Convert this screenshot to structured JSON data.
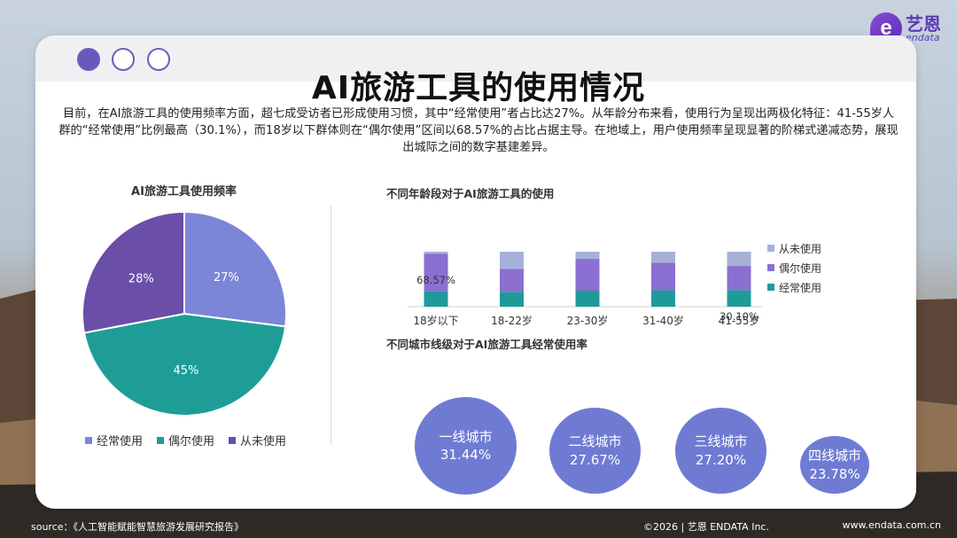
{
  "brand": {
    "cn": "艺恩",
    "en": "endata",
    "mark": "e"
  },
  "title": "AI旅游工具的使用情况",
  "intro": "目前，在AI旅游工具的使用频率方面，超七成受访者已形成使用习惯，其中“经常使用”者占比达27%。从年龄分布来看，使用行为呈现出两极化特征：41-55岁人群的“经常使用”比例最高（30.1%），而18岁以下群体则在“偶尔使用”区间以68.57%的占比占据主导。在地域上，用户使用频率呈现显著的阶梯式递减态势，展现出城际之间的数字基建差异。",
  "colors": {
    "often": "#1f9a9a",
    "sometimes": "#8b6fd1",
    "never": "#a7b1d8",
    "pie_often": "#7b86d8",
    "pie_sometimes": "#1e9d97",
    "pie_never": "#6a4ea8",
    "city": "#6f7bd3"
  },
  "chart_data": [
    {
      "type": "pie",
      "title": "AI旅游工具使用频率",
      "slices": [
        {
          "name": "经常使用",
          "value": 27,
          "label": "27%"
        },
        {
          "name": "偶尔使用",
          "value": 45,
          "label": "45%"
        },
        {
          "name": "从未使用",
          "value": 28,
          "label": "28%"
        }
      ],
      "legend": [
        "经常使用",
        "偶尔使用",
        "从未使用"
      ]
    },
    {
      "type": "bar",
      "stacked": true,
      "title": "不同年龄段对于AI旅游工具的使用",
      "categories": [
        "18岁以下",
        "18-22岁",
        "23-30岁",
        "31-40岁",
        "41-55岁"
      ],
      "series": [
        {
          "name": "经常使用",
          "values": [
            28,
            27,
            29,
            30,
            30.1
          ]
        },
        {
          "name": "偶尔使用",
          "values": [
            68.57,
            42,
            58,
            50,
            44
          ]
        },
        {
          "name": "从未使用",
          "values": [
            3.43,
            31,
            13,
            20,
            25.9
          ]
        }
      ],
      "annotations": [
        {
          "category": "18岁以下",
          "text": "68.57%"
        },
        {
          "category": "41-55岁",
          "text": "30.10%"
        }
      ],
      "legend": [
        "从未使用",
        "偶尔使用",
        "经常使用"
      ],
      "legend_position": "right"
    },
    {
      "type": "bubble",
      "title": "不同城市线级对于AI旅游工具经常使用率",
      "categories": [
        "一线城市",
        "二线城市",
        "三线城市",
        "四线城市"
      ],
      "values": [
        31.44,
        27.67,
        27.2,
        23.78
      ],
      "labels": [
        "31.44%",
        "27.67%",
        "27.20%",
        "23.78%"
      ]
    }
  ],
  "footer": {
    "source": "source：《人工智能赋能智慧旅游发展研究报告》",
    "copyright": "©2026 | 艺恩 ENDATA Inc.",
    "url": "www.endata.com.cn"
  }
}
